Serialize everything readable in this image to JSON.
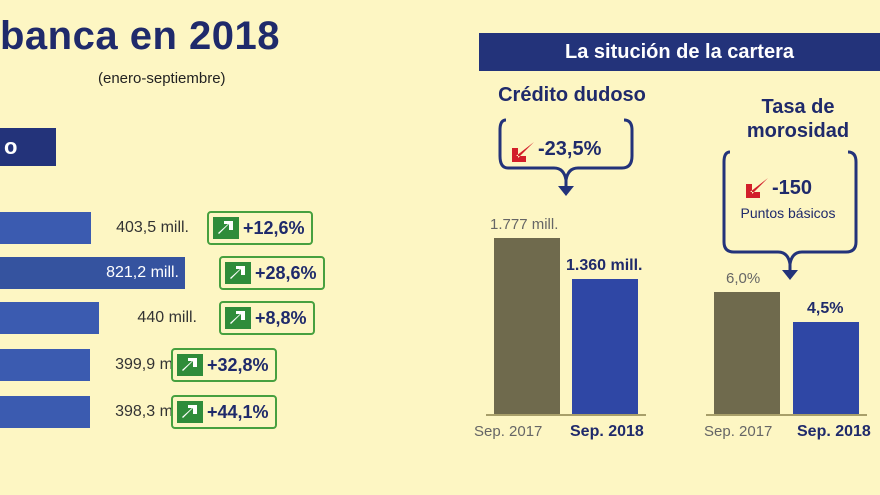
{
  "header": {
    "title": "banca en 2018",
    "subtitle": "(enero-septiembre)",
    "left_label": "o"
  },
  "right_header": "La situción de la cartera",
  "colors": {
    "background": "#fdf6c3",
    "navy": "#23337a",
    "bar_blue": "#3b5bb0",
    "bar_grey": "#6f6a4d",
    "badge_green": "#47a03f",
    "arrow_red": "#d21f2a"
  },
  "chart_data": [
    {
      "type": "bar",
      "orientation": "horizontal",
      "title": "banca en 2018",
      "subtitle": "(enero-septiembre)",
      "categories": [
        "",
        "",
        "",
        "",
        ""
      ],
      "values": [
        403.5,
        821.2,
        440,
        399.9,
        398.3
      ],
      "value_labels": [
        "403,5 mill.",
        "821,2 mill.",
        "440 mill.",
        "399,9 mill.",
        "398,3 mill."
      ],
      "changes": [
        "+12,6%",
        "+28,6%",
        "+8,8%",
        "+32,8%",
        "+44,1%"
      ]
    },
    {
      "type": "bar",
      "title": "Crédito dudoso",
      "categories": [
        "Sep. 2017",
        "Sep. 2018"
      ],
      "values": [
        1777,
        1360
      ],
      "value_labels": [
        "1.777 mill.",
        "1.360 mill."
      ],
      "change": "-23,5%"
    },
    {
      "type": "bar",
      "title": "Tasa de morosidad",
      "categories": [
        "Sep. 2017",
        "Sep. 2018"
      ],
      "values": [
        6.0,
        4.5
      ],
      "value_labels": [
        "6,0%",
        "4,5%"
      ],
      "change": "-150",
      "change_note": "Puntos básicos"
    }
  ]
}
